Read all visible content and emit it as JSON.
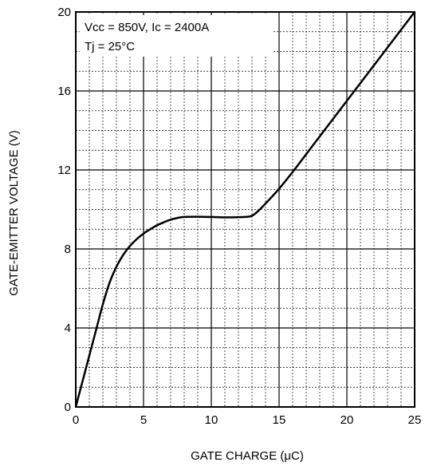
{
  "chart_data": {
    "type": "line",
    "title": "",
    "xlabel": "GATE CHARGE (μC)",
    "ylabel": "GATE-EMITTER VOLTAGE (V)",
    "xlim": [
      0,
      25
    ],
    "ylim": [
      0,
      20
    ],
    "xticks": [
      "0",
      "5",
      "10",
      "15",
      "20",
      "25"
    ],
    "yticks": [
      "0",
      "4",
      "8",
      "12",
      "16",
      "20"
    ],
    "grid": true,
    "annotations": [
      "Vcc = 850V, Ic = 2400A",
      "Tj = 25°C"
    ],
    "series": [
      {
        "x": [
          0,
          0.5,
          1.0,
          1.5,
          2.0,
          2.5,
          3.0,
          3.5,
          4.0,
          4.5,
          5.0,
          5.5,
          6.0,
          6.5,
          7.0,
          7.5,
          8.0,
          9.0,
          10.0,
          11.0,
          12.0,
          12.5,
          13.0,
          13.5,
          14.0,
          15.0,
          16.0,
          17.0,
          18.0,
          19.0,
          20.0,
          21.0,
          22.0,
          23.0,
          24.0,
          25.0
        ],
        "y": [
          0,
          1.3,
          2.6,
          3.9,
          5.2,
          6.3,
          7.1,
          7.7,
          8.15,
          8.5,
          8.78,
          9.0,
          9.2,
          9.35,
          9.48,
          9.57,
          9.62,
          9.63,
          9.62,
          9.6,
          9.61,
          9.62,
          9.68,
          9.95,
          10.3,
          11.05,
          11.9,
          12.8,
          13.7,
          14.6,
          15.5,
          16.4,
          17.3,
          18.2,
          19.1,
          20.0
        ]
      }
    ]
  }
}
